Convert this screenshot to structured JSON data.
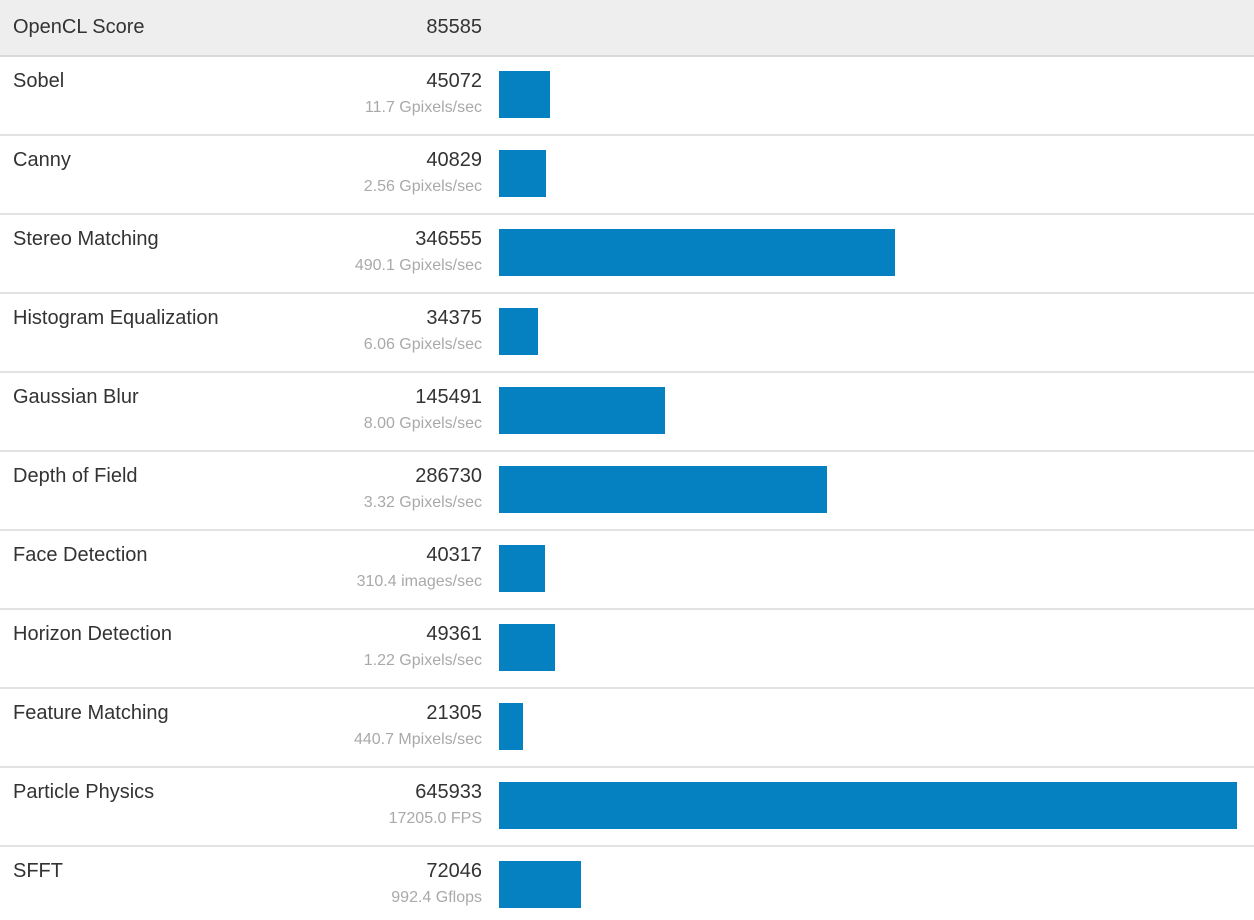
{
  "header": {
    "label": "OpenCL Score",
    "score": "85585"
  },
  "rows": [
    {
      "label": "Sobel",
      "score": "45072",
      "rate": "11.7 Gpixels/sec"
    },
    {
      "label": "Canny",
      "score": "40829",
      "rate": "2.56 Gpixels/sec"
    },
    {
      "label": "Stereo Matching",
      "score": "346555",
      "rate": "490.1 Gpixels/sec"
    },
    {
      "label": "Histogram Equalization",
      "score": "34375",
      "rate": "6.06 Gpixels/sec"
    },
    {
      "label": "Gaussian Blur",
      "score": "145491",
      "rate": "8.00 Gpixels/sec"
    },
    {
      "label": "Depth of Field",
      "score": "286730",
      "rate": "3.32 Gpixels/sec"
    },
    {
      "label": "Face Detection",
      "score": "40317",
      "rate": "310.4 images/sec"
    },
    {
      "label": "Horizon Detection",
      "score": "49361",
      "rate": "1.22 Gpixels/sec"
    },
    {
      "label": "Feature Matching",
      "score": "21305",
      "rate": "440.7 Mpixels/sec"
    },
    {
      "label": "Particle Physics",
      "score": "645933",
      "rate": "17205.0 FPS"
    },
    {
      "label": "SFFT",
      "score": "72046",
      "rate": "992.4 Gflops"
    }
  ],
  "colors": {
    "bar": "#0580c1",
    "header_bg": "#eeeeee",
    "header_border": "#d9d9d9",
    "row_border": "#e2e2e2",
    "text": "#333333",
    "rate_text": "#a9a9a9"
  },
  "chart_data": {
    "type": "bar",
    "orientation": "horizontal",
    "title": "OpenCL Score",
    "total_score": 85585,
    "categories": [
      "Sobel",
      "Canny",
      "Stereo Matching",
      "Histogram Equalization",
      "Gaussian Blur",
      "Depth of Field",
      "Face Detection",
      "Horizon Detection",
      "Feature Matching",
      "Particle Physics",
      "SFFT"
    ],
    "values": [
      45072,
      40829,
      346555,
      34375,
      145491,
      286730,
      40317,
      49361,
      21305,
      645933,
      72046
    ],
    "value_labels": [
      "11.7 Gpixels/sec",
      "2.56 Gpixels/sec",
      "490.1 Gpixels/sec",
      "6.06 Gpixels/sec",
      "8.00 Gpixels/sec",
      "3.32 Gpixels/sec",
      "310.4 images/sec",
      "1.22 Gpixels/sec",
      "440.7 Mpixels/sec",
      "17205.0 FPS",
      "992.4 Gflops"
    ],
    "xlim": [
      0,
      645933
    ],
    "bar_color": "#0580c1",
    "legend": "none",
    "grid": false
  }
}
